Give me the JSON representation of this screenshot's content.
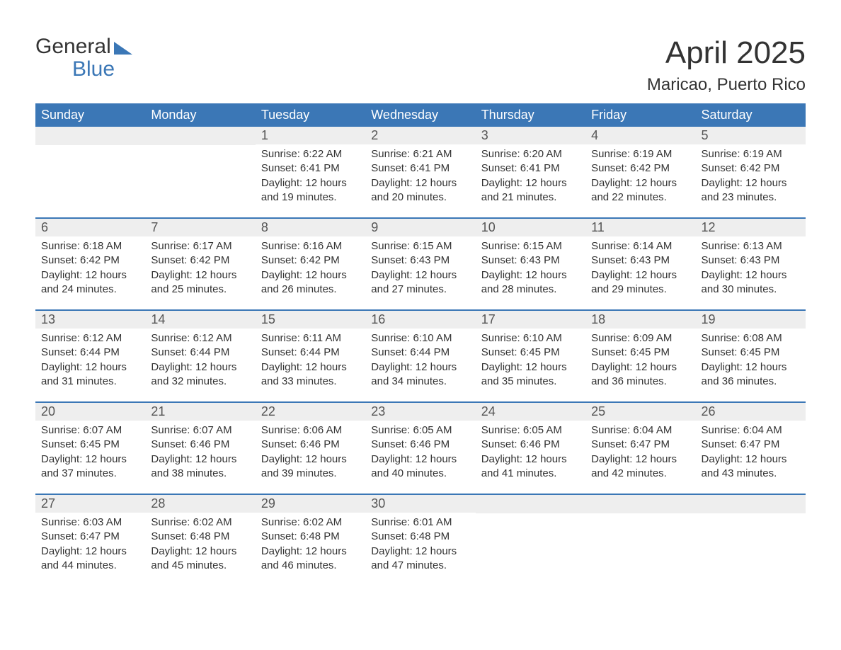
{
  "logo": {
    "word1": "General",
    "word2": "Blue"
  },
  "header": {
    "month_year": "April 2025",
    "location": "Maricao, Puerto Rico"
  },
  "colors": {
    "brand_blue": "#3b77b6",
    "row_header_bg": "#eeeeee",
    "text": "#333333",
    "background": "#ffffff"
  },
  "day_labels": [
    "Sunday",
    "Monday",
    "Tuesday",
    "Wednesday",
    "Thursday",
    "Friday",
    "Saturday"
  ],
  "weeks": [
    [
      {
        "day": "",
        "sunrise": "",
        "sunset": "",
        "daylight": ""
      },
      {
        "day": "",
        "sunrise": "",
        "sunset": "",
        "daylight": ""
      },
      {
        "day": "1",
        "sunrise": "Sunrise: 6:22 AM",
        "sunset": "Sunset: 6:41 PM",
        "daylight": "Daylight: 12 hours and 19 minutes."
      },
      {
        "day": "2",
        "sunrise": "Sunrise: 6:21 AM",
        "sunset": "Sunset: 6:41 PM",
        "daylight": "Daylight: 12 hours and 20 minutes."
      },
      {
        "day": "3",
        "sunrise": "Sunrise: 6:20 AM",
        "sunset": "Sunset: 6:41 PM",
        "daylight": "Daylight: 12 hours and 21 minutes."
      },
      {
        "day": "4",
        "sunrise": "Sunrise: 6:19 AM",
        "sunset": "Sunset: 6:42 PM",
        "daylight": "Daylight: 12 hours and 22 minutes."
      },
      {
        "day": "5",
        "sunrise": "Sunrise: 6:19 AM",
        "sunset": "Sunset: 6:42 PM",
        "daylight": "Daylight: 12 hours and 23 minutes."
      }
    ],
    [
      {
        "day": "6",
        "sunrise": "Sunrise: 6:18 AM",
        "sunset": "Sunset: 6:42 PM",
        "daylight": "Daylight: 12 hours and 24 minutes."
      },
      {
        "day": "7",
        "sunrise": "Sunrise: 6:17 AM",
        "sunset": "Sunset: 6:42 PM",
        "daylight": "Daylight: 12 hours and 25 minutes."
      },
      {
        "day": "8",
        "sunrise": "Sunrise: 6:16 AM",
        "sunset": "Sunset: 6:42 PM",
        "daylight": "Daylight: 12 hours and 26 minutes."
      },
      {
        "day": "9",
        "sunrise": "Sunrise: 6:15 AM",
        "sunset": "Sunset: 6:43 PM",
        "daylight": "Daylight: 12 hours and 27 minutes."
      },
      {
        "day": "10",
        "sunrise": "Sunrise: 6:15 AM",
        "sunset": "Sunset: 6:43 PM",
        "daylight": "Daylight: 12 hours and 28 minutes."
      },
      {
        "day": "11",
        "sunrise": "Sunrise: 6:14 AM",
        "sunset": "Sunset: 6:43 PM",
        "daylight": "Daylight: 12 hours and 29 minutes."
      },
      {
        "day": "12",
        "sunrise": "Sunrise: 6:13 AM",
        "sunset": "Sunset: 6:43 PM",
        "daylight": "Daylight: 12 hours and 30 minutes."
      }
    ],
    [
      {
        "day": "13",
        "sunrise": "Sunrise: 6:12 AM",
        "sunset": "Sunset: 6:44 PM",
        "daylight": "Daylight: 12 hours and 31 minutes."
      },
      {
        "day": "14",
        "sunrise": "Sunrise: 6:12 AM",
        "sunset": "Sunset: 6:44 PM",
        "daylight": "Daylight: 12 hours and 32 minutes."
      },
      {
        "day": "15",
        "sunrise": "Sunrise: 6:11 AM",
        "sunset": "Sunset: 6:44 PM",
        "daylight": "Daylight: 12 hours and 33 minutes."
      },
      {
        "day": "16",
        "sunrise": "Sunrise: 6:10 AM",
        "sunset": "Sunset: 6:44 PM",
        "daylight": "Daylight: 12 hours and 34 minutes."
      },
      {
        "day": "17",
        "sunrise": "Sunrise: 6:10 AM",
        "sunset": "Sunset: 6:45 PM",
        "daylight": "Daylight: 12 hours and 35 minutes."
      },
      {
        "day": "18",
        "sunrise": "Sunrise: 6:09 AM",
        "sunset": "Sunset: 6:45 PM",
        "daylight": "Daylight: 12 hours and 36 minutes."
      },
      {
        "day": "19",
        "sunrise": "Sunrise: 6:08 AM",
        "sunset": "Sunset: 6:45 PM",
        "daylight": "Daylight: 12 hours and 36 minutes."
      }
    ],
    [
      {
        "day": "20",
        "sunrise": "Sunrise: 6:07 AM",
        "sunset": "Sunset: 6:45 PM",
        "daylight": "Daylight: 12 hours and 37 minutes."
      },
      {
        "day": "21",
        "sunrise": "Sunrise: 6:07 AM",
        "sunset": "Sunset: 6:46 PM",
        "daylight": "Daylight: 12 hours and 38 minutes."
      },
      {
        "day": "22",
        "sunrise": "Sunrise: 6:06 AM",
        "sunset": "Sunset: 6:46 PM",
        "daylight": "Daylight: 12 hours and 39 minutes."
      },
      {
        "day": "23",
        "sunrise": "Sunrise: 6:05 AM",
        "sunset": "Sunset: 6:46 PM",
        "daylight": "Daylight: 12 hours and 40 minutes."
      },
      {
        "day": "24",
        "sunrise": "Sunrise: 6:05 AM",
        "sunset": "Sunset: 6:46 PM",
        "daylight": "Daylight: 12 hours and 41 minutes."
      },
      {
        "day": "25",
        "sunrise": "Sunrise: 6:04 AM",
        "sunset": "Sunset: 6:47 PM",
        "daylight": "Daylight: 12 hours and 42 minutes."
      },
      {
        "day": "26",
        "sunrise": "Sunrise: 6:04 AM",
        "sunset": "Sunset: 6:47 PM",
        "daylight": "Daylight: 12 hours and 43 minutes."
      }
    ],
    [
      {
        "day": "27",
        "sunrise": "Sunrise: 6:03 AM",
        "sunset": "Sunset: 6:47 PM",
        "daylight": "Daylight: 12 hours and 44 minutes."
      },
      {
        "day": "28",
        "sunrise": "Sunrise: 6:02 AM",
        "sunset": "Sunset: 6:48 PM",
        "daylight": "Daylight: 12 hours and 45 minutes."
      },
      {
        "day": "29",
        "sunrise": "Sunrise: 6:02 AM",
        "sunset": "Sunset: 6:48 PM",
        "daylight": "Daylight: 12 hours and 46 minutes."
      },
      {
        "day": "30",
        "sunrise": "Sunrise: 6:01 AM",
        "sunset": "Sunset: 6:48 PM",
        "daylight": "Daylight: 12 hours and 47 minutes."
      },
      {
        "day": "",
        "sunrise": "",
        "sunset": "",
        "daylight": ""
      },
      {
        "day": "",
        "sunrise": "",
        "sunset": "",
        "daylight": ""
      },
      {
        "day": "",
        "sunrise": "",
        "sunset": "",
        "daylight": ""
      }
    ]
  ]
}
